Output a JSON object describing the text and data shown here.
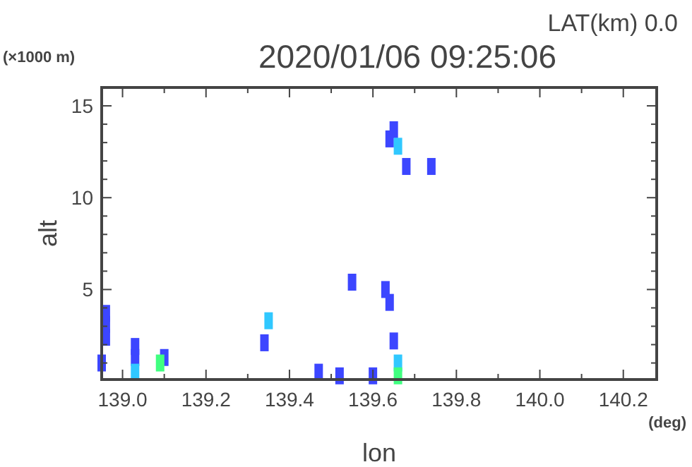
{
  "chart_data": {
    "type": "scatter",
    "title": "2020/01/06 09:25:06",
    "xlabel": "lon",
    "ylabel": "alt",
    "annotations": [
      "LAT(km) 0.0",
      "(×1000 m)",
      "(deg)"
    ],
    "marker": "square",
    "grid": false,
    "xlim": [
      138.95,
      140.28
    ],
    "xticks": [
      {
        "value": 139.0,
        "label": "139.0"
      },
      {
        "value": 139.1,
        "label": null
      },
      {
        "value": 139.2,
        "label": "139.2"
      },
      {
        "value": 139.3,
        "label": null
      },
      {
        "value": 139.4,
        "label": "139.4"
      },
      {
        "value": 139.5,
        "label": null
      },
      {
        "value": 139.6,
        "label": "139.6"
      },
      {
        "value": 139.7,
        "label": null
      },
      {
        "value": 139.8,
        "label": "139.8"
      },
      {
        "value": 139.9,
        "label": null
      },
      {
        "value": 140.0,
        "label": "140.0"
      },
      {
        "value": 140.1,
        "label": null
      },
      {
        "value": 140.2,
        "label": "140.2"
      }
    ],
    "ylim": [
      0.1,
      16
    ],
    "yticks": [
      {
        "value": 1,
        "label": null
      },
      {
        "value": 2,
        "label": null
      },
      {
        "value": 3,
        "label": null
      },
      {
        "value": 4,
        "label": null
      },
      5,
      {
        "value": 6,
        "label": null
      },
      {
        "value": 7,
        "label": null
      },
      {
        "value": 8,
        "label": null
      },
      {
        "value": 9,
        "label": null
      },
      10,
      {
        "value": 11,
        "label": null
      },
      {
        "value": 12,
        "label": null
      },
      {
        "value": 13,
        "label": null
      },
      {
        "value": 14,
        "label": null
      },
      15
    ],
    "series": [
      {
        "color": "#3c46ff",
        "x": [
          138.96,
          138.96,
          138.96,
          138.95,
          139.03,
          139.03,
          139.1,
          139.34,
          139.47,
          139.52,
          139.55,
          139.6,
          139.63,
          139.64,
          139.64,
          139.65,
          139.65,
          139.68,
          139.74
        ],
        "values": [
          3.7,
          3.1,
          2.4,
          1.0,
          1.3,
          1.9,
          1.3,
          2.1,
          0.5,
          0.3,
          5.4,
          0.3,
          5.0,
          4.3,
          13.2,
          13.7,
          2.2,
          11.7,
          11.7
        ]
      },
      {
        "color": "#30c8ff",
        "x": [
          139.35,
          139.66,
          139.66,
          139.03
        ],
        "values": [
          3.3,
          12.8,
          1.0,
          0.5
        ]
      },
      {
        "color": "#40ff80",
        "x": [
          139.09,
          139.66
        ],
        "values": [
          1.0,
          0.3
        ]
      }
    ]
  }
}
